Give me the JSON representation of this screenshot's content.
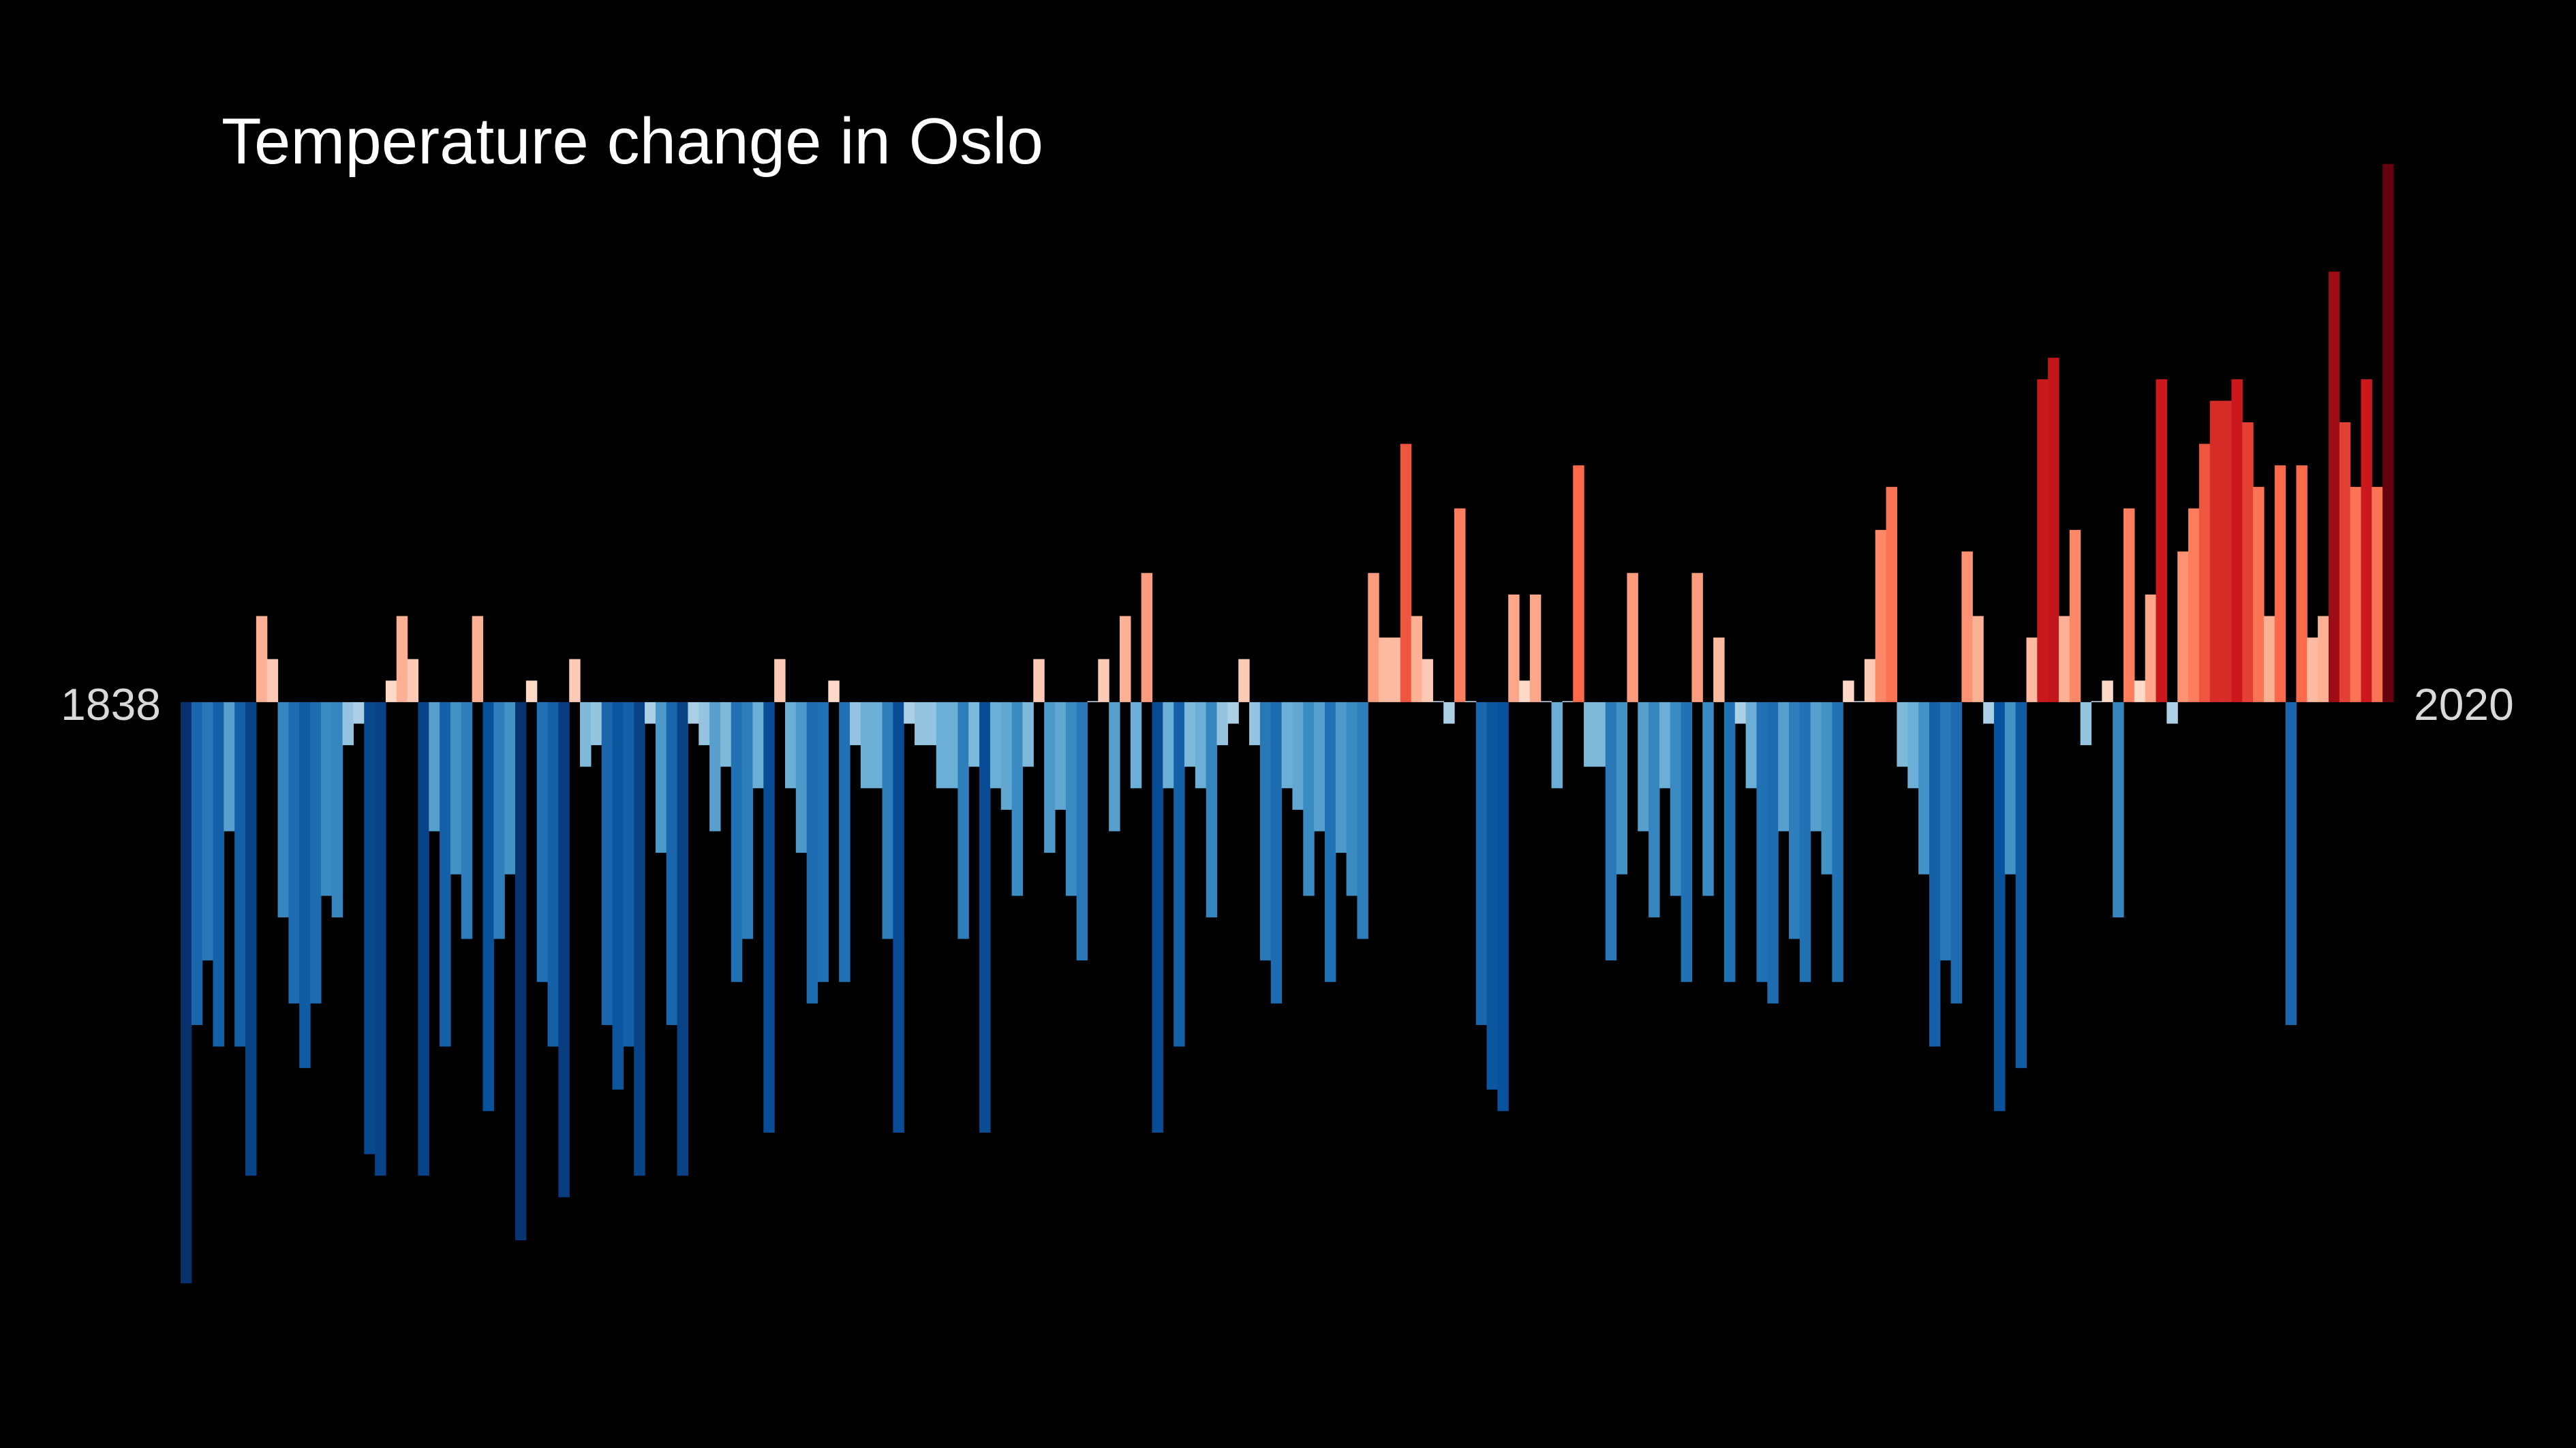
{
  "chart_data": {
    "type": "bar",
    "title": "Temperature change in Oslo",
    "start_label": "1838",
    "end_label": "2020",
    "x_start": 1838,
    "x_end": 2020,
    "ylim": [
      -2.75,
      2.55
    ],
    "grid": false,
    "legend": "none",
    "values": [
      -2.7,
      -1.5,
      -1.2,
      -1.6,
      -0.6,
      -1.6,
      -2.2,
      0.4,
      0.2,
      -1.0,
      -1.4,
      -1.7,
      -1.4,
      -0.9,
      -1.0,
      -0.2,
      -0.1,
      -2.1,
      -2.2,
      0.1,
      0.4,
      0.2,
      -2.2,
      -0.6,
      -1.6,
      -0.8,
      -1.1,
      0.4,
      -1.9,
      -1.1,
      -0.8,
      -2.5,
      0.1,
      -1.3,
      -1.6,
      -2.3,
      0.2,
      -0.3,
      -0.2,
      -1.5,
      -1.8,
      -1.6,
      -2.2,
      -0.1,
      -0.7,
      -1.5,
      -2.2,
      -0.1,
      -0.2,
      -0.6,
      -0.3,
      -1.3,
      -1.1,
      -0.4,
      -2.0,
      0.2,
      -0.4,
      -0.7,
      -1.4,
      -1.3,
      0.1,
      -1.3,
      -0.2,
      -0.4,
      -0.4,
      -1.1,
      -2.0,
      -0.1,
      -0.2,
      -0.2,
      -0.4,
      -0.4,
      -1.1,
      -0.3,
      -2.0,
      -0.4,
      -0.5,
      -0.9,
      -0.3,
      0.2,
      -0.7,
      -0.5,
      -0.9,
      -1.2,
      0.0,
      0.2,
      -0.6,
      0.4,
      -0.4,
      0.6,
      -2.0,
      -0.4,
      -1.6,
      -0.3,
      -0.4,
      -1.0,
      -0.2,
      -0.1,
      0.2,
      -0.2,
      -1.2,
      -1.4,
      -0.4,
      -0.5,
      -0.9,
      -0.6,
      -1.3,
      -0.7,
      -0.9,
      -1.1,
      0.6,
      0.3,
      0.3,
      1.2,
      0.4,
      0.2,
      0.0,
      -0.1,
      0.9,
      0.0,
      -1.5,
      -1.8,
      -1.9,
      0.5,
      0.1,
      0.5,
      0.0,
      -0.4,
      0.0,
      1.1,
      -0.3,
      -0.3,
      -1.2,
      -0.8,
      0.6,
      -0.6,
      -1.0,
      -0.4,
      -0.9,
      -1.3,
      0.6,
      -0.9,
      0.3,
      -1.3,
      -0.1,
      -0.4,
      -1.3,
      -1.4,
      -0.6,
      -1.1,
      -1.3,
      -0.6,
      -0.8,
      -1.3,
      0.1,
      0.0,
      0.2,
      0.8,
      1.0,
      -0.3,
      -0.4,
      -0.8,
      -1.6,
      -1.2,
      -1.4,
      0.7,
      0.4,
      -0.1,
      -1.9,
      -0.8,
      -1.7,
      0.3,
      1.5,
      1.6,
      0.4,
      0.8,
      -0.2,
      0.0,
      0.1,
      -1.0,
      0.9,
      0.1,
      0.5,
      1.5,
      -0.1,
      0.7,
      0.9,
      1.2,
      1.4,
      1.4,
      1.5,
      1.3,
      1.0,
      0.4,
      1.1,
      -1.5,
      1.1,
      0.3,
      0.4,
      2.0,
      1.3,
      1.0,
      1.5,
      1.0,
      2.5
    ]
  }
}
